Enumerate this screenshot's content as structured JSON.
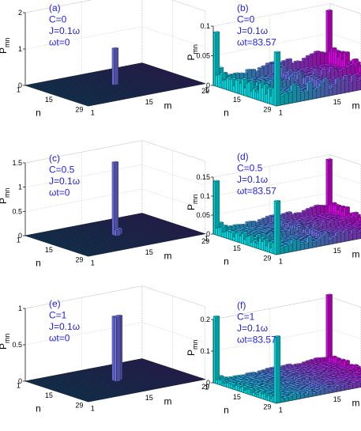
{
  "figure": {
    "annotation_color": "#2222dd",
    "colormap": [
      "#00ffff",
      "#ff00ff"
    ],
    "floor_color": "#2c3c72",
    "grid_color": "#0d1f3d"
  },
  "chart_data": [
    {
      "type": "bar3d",
      "panel": "a",
      "annotations": [
        "(a)",
        "C=0",
        "J=0.1ω",
        "ωt=0"
      ],
      "zlabel": "P",
      "zlabel_sub": "mn",
      "xlabel": "n",
      "ylabel": "m",
      "n_ticks": [
        "1",
        "15",
        "29"
      ],
      "m_ticks": [
        "1",
        "15",
        "29"
      ],
      "z_ticks": [
        "0",
        "1",
        "2"
      ],
      "zlim": [
        0,
        2
      ],
      "grid_size": 29,
      "peaks": [
        {
          "n": 15,
          "m": 15,
          "value": 1.0
        }
      ]
    },
    {
      "type": "bar3d",
      "panel": "b",
      "annotations": [
        "(b)",
        "C=0",
        "J=0.1ω",
        "ωt=83.57"
      ],
      "zlabel": "P",
      "zlabel_sub": "mn",
      "xlabel": "n",
      "ylabel": "m",
      "n_ticks": [
        "1",
        "15",
        "29"
      ],
      "m_ticks": [
        "1",
        "15",
        "29"
      ],
      "z_ticks": [
        "0",
        "0.05",
        "0.1"
      ],
      "zlim": [
        0,
        0.1
      ],
      "grid_size": 29,
      "edge_value": 0.03,
      "corner_value": 0.09,
      "background_value": 0.004
    },
    {
      "type": "bar3d",
      "panel": "c",
      "annotations": [
        "(c)",
        "C=0.5",
        "J=0.1ω",
        "ωt=0"
      ],
      "zlabel": "P",
      "zlabel_sub": "mn",
      "xlabel": "n",
      "ylabel": "m",
      "n_ticks": [
        "1",
        "15",
        "29"
      ],
      "m_ticks": [
        "1",
        "15",
        "29"
      ],
      "z_ticks": [
        "0",
        "0.5",
        "1",
        "1.5"
      ],
      "zlim": [
        0,
        1.5
      ],
      "grid_size": 29,
      "peaks": [
        {
          "n": 15,
          "m": 15,
          "value": 1.5
        },
        {
          "n": 15,
          "m": 16,
          "value": 0.12
        },
        {
          "n": 16,
          "m": 15,
          "value": 0.12
        }
      ]
    },
    {
      "type": "bar3d",
      "panel": "d",
      "annotations": [
        "(d)",
        "C=0.5",
        "J=0.1ω",
        "ωt=83.57"
      ],
      "zlabel": "P",
      "zlabel_sub": "mn",
      "xlabel": "n",
      "ylabel": "m",
      "n_ticks": [
        "1",
        "15",
        "29"
      ],
      "m_ticks": [
        "1",
        "15",
        "29"
      ],
      "z_ticks": [
        "0",
        "0.05",
        "0.1",
        "0.15"
      ],
      "zlim": [
        0,
        0.15
      ],
      "grid_size": 29,
      "edge_value": 0.03,
      "corner_value": 0.14,
      "background_value": 0.006
    },
    {
      "type": "bar3d",
      "panel": "e",
      "annotations": [
        "(e)",
        "C=1",
        "J=0.1ω",
        "ωt=0"
      ],
      "zlabel": "P",
      "zlabel_sub": "mn",
      "xlabel": "n",
      "ylabel": "m",
      "n_ticks": [
        "1",
        "15",
        "29"
      ],
      "m_ticks": [
        "1",
        "15",
        "29"
      ],
      "z_ticks": [
        "0",
        "0.5",
        "1"
      ],
      "zlim": [
        0,
        1
      ],
      "grid_size": 29,
      "peaks": [
        {
          "n": 15,
          "m": 15,
          "value": 0.88
        },
        {
          "n": 15,
          "m": 16,
          "value": 0.88
        },
        {
          "n": 16,
          "m": 15,
          "value": 0.88
        }
      ]
    },
    {
      "type": "bar3d",
      "panel": "f",
      "annotations": [
        "(f)",
        "C=1",
        "J=0.1ω",
        "ωt=83.57"
      ],
      "zlabel": "P",
      "zlabel_sub": "mn",
      "xlabel": "n",
      "ylabel": "m",
      "n_ticks": [
        "1",
        "15",
        "29"
      ],
      "m_ticks": [
        "1",
        "15",
        "29"
      ],
      "z_ticks": [
        "0",
        "0.1",
        "0.2"
      ],
      "zlim": [
        0,
        0.2
      ],
      "grid_size": 29,
      "edge_value": 0.02,
      "corner_value": 0.21,
      "background_value": 0.006
    }
  ]
}
